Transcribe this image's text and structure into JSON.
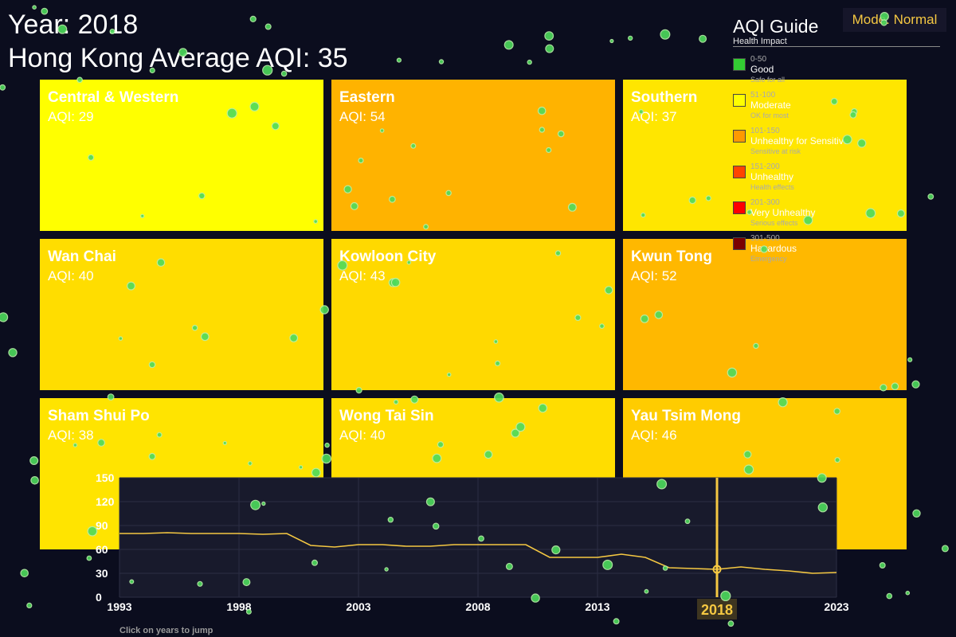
{
  "header": {
    "year_text": "Year: 2018",
    "average_text": "Hong Kong Average AQI: 35"
  },
  "mode_badge": "Mode: Normal",
  "districts": [
    {
      "name": "Central & Western",
      "aqi_text": "AQI: 29",
      "aqi": 29,
      "color": "#ffff00"
    },
    {
      "name": "Eastern",
      "aqi_text": "AQI: 54",
      "aqi": 54,
      "color": "#ffb300"
    },
    {
      "name": "Southern",
      "aqi_text": "AQI: 37",
      "aqi": 37,
      "color": "#ffe600"
    },
    {
      "name": "Wan Chai",
      "aqi_text": "AQI: 40",
      "aqi": 40,
      "color": "#ffdd00"
    },
    {
      "name": "Kowloon City",
      "aqi_text": "AQI: 43",
      "aqi": 43,
      "color": "#ffd900"
    },
    {
      "name": "Kwun Tong",
      "aqi_text": "AQI: 52",
      "aqi": 52,
      "color": "#ffb800"
    },
    {
      "name": "Sham Shui Po",
      "aqi_text": "AQI: 38",
      "aqi": 38,
      "color": "#ffe400"
    },
    {
      "name": "Wong Tai Sin",
      "aqi_text": "AQI: 40",
      "aqi": 40,
      "color": "#ffdd00"
    },
    {
      "name": "Yau Tsim Mong",
      "aqi_text": "AQI: 46",
      "aqi": 46,
      "color": "#ffcc00"
    }
  ],
  "legend": {
    "title": "AQI Guide",
    "subtitle": "Health Impact",
    "items": [
      {
        "range": "0-50",
        "label": "Good",
        "desc": "Safe for all",
        "color": "#33cc33"
      },
      {
        "range": "51-100",
        "label": "Moderate",
        "desc": "OK for most",
        "color": "#ffff00"
      },
      {
        "range": "101-150",
        "label": "Unhealthy for Sensitive",
        "desc": "Sensitive at risk",
        "color": "#ff9900"
      },
      {
        "range": "151-200",
        "label": "Unhealthy",
        "desc": "Health effects",
        "color": "#ff4400"
      },
      {
        "range": "201-300",
        "label": "Very Unhealthy",
        "desc": "Serious effects",
        "color": "#ff0000"
      },
      {
        "range": "301-500",
        "label": "Hazardous",
        "desc": "Emergency",
        "color": "#7a0000"
      }
    ]
  },
  "chart_data": {
    "type": "line",
    "x": [
      1993,
      1994,
      1995,
      1996,
      1997,
      1998,
      1999,
      2000,
      2001,
      2002,
      2003,
      2004,
      2005,
      2006,
      2007,
      2008,
      2009,
      2010,
      2011,
      2012,
      2013,
      2014,
      2015,
      2016,
      2017,
      2018,
      2019,
      2020,
      2021,
      2022,
      2023
    ],
    "values": [
      80,
      80,
      81,
      80,
      80,
      80,
      79,
      80,
      65,
      63,
      66,
      66,
      64,
      64,
      66,
      66,
      66,
      66,
      50,
      50,
      50,
      54,
      50,
      37,
      36,
      35,
      38,
      35,
      33,
      30,
      31
    ],
    "xticks": [
      "1993",
      "1998",
      "2003",
      "2008",
      "2013",
      "2018",
      "2023"
    ],
    "yticks": [
      "0",
      "30",
      "60",
      "90",
      "120",
      "150"
    ],
    "xlim": [
      1993,
      2023
    ],
    "ylim": [
      0,
      150
    ],
    "selected_year": 2018,
    "selected_label": "2018",
    "line_color": "#f5c842",
    "grid": true,
    "hint": "Click on years to jump"
  },
  "colors": {
    "background": "#0b0d1e",
    "particle": "#4ddb5c",
    "accent": "#f5c842"
  }
}
